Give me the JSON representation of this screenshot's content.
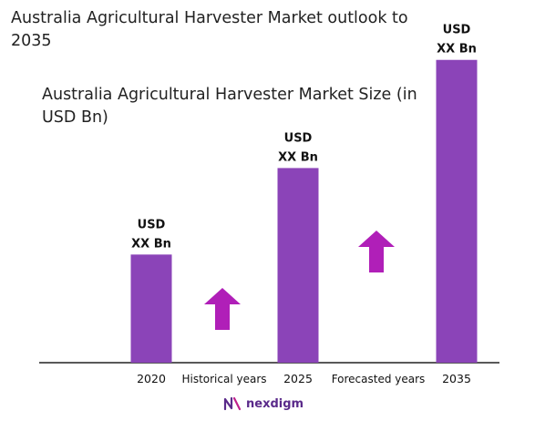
{
  "title": "Australia Agricultural Harvester Market outlook to 2035",
  "subtitle": "Australia Agricultural Harvester Market Size (in USD Bn)",
  "colors": {
    "bar": "#8b44b8",
    "arrow": "#b01fb8",
    "axis": "#222222"
  },
  "brand": {
    "name": "nexdigm",
    "icon": "nexdigm-logo-icon"
  },
  "chart_data": {
    "type": "bar",
    "categories": [
      "2020",
      "2025",
      "2035"
    ],
    "values": [
      2.0,
      3.6,
      5.6
    ],
    "data_labels": [
      [
        "USD",
        "XX Bn"
      ],
      [
        "USD",
        "XX Bn"
      ],
      [
        "USD",
        "XX Bn"
      ]
    ],
    "period_labels": [
      "Historical years",
      "Forecasted years"
    ],
    "trend_arrows": [
      "up-arrow-icon",
      "up-arrow-icon"
    ],
    "ylim": [
      0,
      6
    ],
    "grid": false,
    "legend": "none"
  }
}
